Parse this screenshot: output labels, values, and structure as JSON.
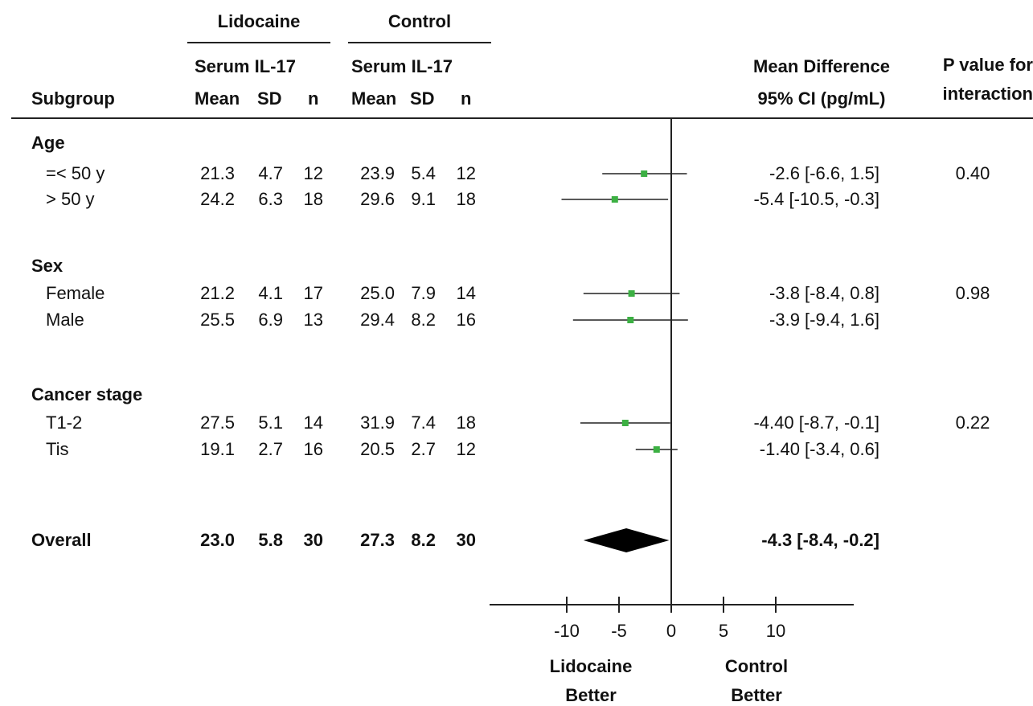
{
  "header": {
    "group_lidocaine": "Lidocaine",
    "group_control": "Control",
    "serum_label": "Serum IL-17",
    "subgroup_label": "Subgroup",
    "mean_label": "Mean",
    "sd_label": "SD",
    "n_label": "n",
    "diff_label_line1": "Mean Difference",
    "diff_label_line2": "95% CI (pg/mL)",
    "p_label_line1": "P value for",
    "p_label_line2": "interaction"
  },
  "axis": {
    "xlim": [
      -20,
      15
    ],
    "ticks": [
      -10,
      -5,
      0,
      5,
      10
    ],
    "tick_labels": [
      "-10",
      "-5",
      "0",
      "5",
      "10"
    ],
    "left_label_line1": "Lidocaine",
    "left_label_line2": "Better",
    "right_label_line1": "Control",
    "right_label_line2": "Better"
  },
  "rows": [
    {
      "type": "group",
      "label": "Age"
    },
    {
      "type": "item",
      "label": "=< 50 y",
      "lido_mean": "21.3",
      "lido_sd": "4.7",
      "lido_n": "12",
      "ctrl_mean": "23.9",
      "ctrl_sd": "5.4",
      "ctrl_n": "12",
      "ci_text": "-2.6 [-6.6, 1.5]",
      "p": "0.40",
      "est": -2.6,
      "lo": -6.6,
      "hi": 1.5
    },
    {
      "type": "item",
      "label": "> 50 y",
      "lido_mean": "24.2",
      "lido_sd": "6.3",
      "lido_n": "18",
      "ctrl_mean": "29.6",
      "ctrl_sd": "9.1",
      "ctrl_n": "18",
      "ci_text": "-5.4 [-10.5, -0.3]",
      "p": "",
      "est": -5.4,
      "lo": -10.5,
      "hi": -0.3
    },
    {
      "type": "group",
      "label": "Sex"
    },
    {
      "type": "item",
      "label": "Female",
      "lido_mean": "21.2",
      "lido_sd": "4.1",
      "lido_n": "17",
      "ctrl_mean": "25.0",
      "ctrl_sd": "7.9",
      "ctrl_n": "14",
      "ci_text": "-3.8 [-8.4, 0.8]",
      "p": "0.98",
      "est": -3.8,
      "lo": -8.4,
      "hi": 0.8
    },
    {
      "type": "item",
      "label": "Male",
      "lido_mean": "25.5",
      "lido_sd": "6.9",
      "lido_n": "13",
      "ctrl_mean": "29.4",
      "ctrl_sd": "8.2",
      "ctrl_n": "16",
      "ci_text": "-3.9 [-9.4, 1.6]",
      "p": "",
      "est": -3.9,
      "lo": -9.4,
      "hi": 1.6
    },
    {
      "type": "group",
      "label": "Cancer stage"
    },
    {
      "type": "item",
      "label": "T1-2",
      "lido_mean": "27.5",
      "lido_sd": "5.1",
      "lido_n": "14",
      "ctrl_mean": "31.9",
      "ctrl_sd": "7.4",
      "ctrl_n": "18",
      "ci_text": "-4.40 [-8.7, -0.1]",
      "p": "0.22",
      "est": -4.4,
      "lo": -8.7,
      "hi": -0.1
    },
    {
      "type": "item",
      "label": "Tis",
      "lido_mean": "19.1",
      "lido_sd": "2.7",
      "lido_n": "16",
      "ctrl_mean": "20.5",
      "ctrl_sd": "2.7",
      "ctrl_n": "12",
      "ci_text": "-1.40 [-3.4, 0.6]",
      "p": "",
      "est": -1.4,
      "lo": -3.4,
      "hi": 0.6
    },
    {
      "type": "overall",
      "label": "Overall",
      "lido_mean": "23.0",
      "lido_sd": "5.8",
      "lido_n": "30",
      "ctrl_mean": "27.3",
      "ctrl_sd": "8.2",
      "ctrl_n": "30",
      "ci_text": "-4.3 [-8.4, -0.2]",
      "p": "",
      "est": -4.3,
      "lo": -8.4,
      "hi": -0.2
    }
  ],
  "chart_data": {
    "type": "forest",
    "xlabel": "",
    "xlim": [
      -20,
      15
    ],
    "reference_line": 0,
    "marker_color": "#3cb043",
    "diamond_color": "#000000",
    "series": [
      {
        "label": "=< 50 y",
        "estimate": -2.6,
        "ci": [
          -6.6,
          1.5
        ]
      },
      {
        "label": "> 50 y",
        "estimate": -5.4,
        "ci": [
          -10.5,
          -0.3
        ]
      },
      {
        "label": "Female",
        "estimate": -3.8,
        "ci": [
          -8.4,
          0.8
        ]
      },
      {
        "label": "Male",
        "estimate": -3.9,
        "ci": [
          -9.4,
          1.6
        ]
      },
      {
        "label": "T1-2",
        "estimate": -4.4,
        "ci": [
          -8.7,
          -0.1
        ]
      },
      {
        "label": "Tis",
        "estimate": -1.4,
        "ci": [
          -3.4,
          0.6
        ]
      },
      {
        "label": "Overall",
        "estimate": -4.3,
        "ci": [
          -8.4,
          -0.2
        ]
      }
    ]
  }
}
